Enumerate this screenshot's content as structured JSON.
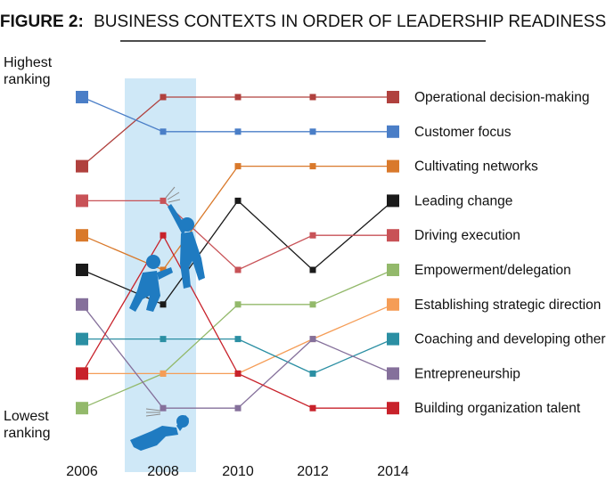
{
  "title": {
    "prefix": "FIGURE 2:",
    "text": "BUSINESS CONTEXTS IN ORDER OF LEADERSHIP READINESS"
  },
  "y_labels": {
    "top_line1": "Highest",
    "top_line2": "ranking",
    "bottom_line1": "Lowest",
    "bottom_line2": "ranking"
  },
  "colors": {
    "highlight_band": "#cfe8f7",
    "figure_blue": "#1f7bc1"
  },
  "chart_data": {
    "type": "line",
    "subtype": "bump",
    "title": "FIGURE 2: BUSINESS CONTEXTS IN ORDER OF LEADERSHIP READINESS",
    "x": [
      "2006",
      "2008",
      "2010",
      "2012",
      "2014"
    ],
    "xlabel": "",
    "ylabel": "",
    "y_axis": "rank (1 = highest ranking, 10 = lowest ranking)",
    "ylim": [
      1,
      10
    ],
    "highlight_range": [
      "2007",
      "2009"
    ],
    "grid": false,
    "legend": "right",
    "series": [
      {
        "name": "Operational decision-making",
        "color": "#b0413e",
        "ranks": [
          3,
          1,
          1,
          1,
          1
        ]
      },
      {
        "name": "Customer focus",
        "color": "#4a7ec7",
        "ranks": [
          1,
          2,
          2,
          2,
          2
        ]
      },
      {
        "name": "Cultivating networks",
        "color": "#d9792b",
        "ranks": [
          5,
          6,
          3,
          3,
          3
        ]
      },
      {
        "name": "Leading change",
        "color": "#1a1a1a",
        "ranks": [
          6,
          7,
          4,
          6,
          4
        ]
      },
      {
        "name": "Driving execution",
        "color": "#c85257",
        "ranks": [
          4,
          4,
          6,
          5,
          5
        ]
      },
      {
        "name": "Empowerment/delegation",
        "color": "#93b96b",
        "ranks": [
          10,
          9,
          7,
          7,
          6
        ]
      },
      {
        "name": "Establishing strategic direction",
        "color": "#f59d57",
        "ranks": [
          9,
          9,
          9,
          8,
          7
        ]
      },
      {
        "name": "Coaching and developing others",
        "color": "#2b8fa3",
        "ranks": [
          8,
          8,
          8,
          9,
          8
        ]
      },
      {
        "name": "Entrepreneurship",
        "color": "#85709b",
        "ranks": [
          7,
          10,
          10,
          8,
          9
        ]
      },
      {
        "name": "Building organization talent",
        "color": "#c8222b",
        "ranks": [
          9,
          5,
          9,
          10,
          10
        ]
      }
    ]
  }
}
